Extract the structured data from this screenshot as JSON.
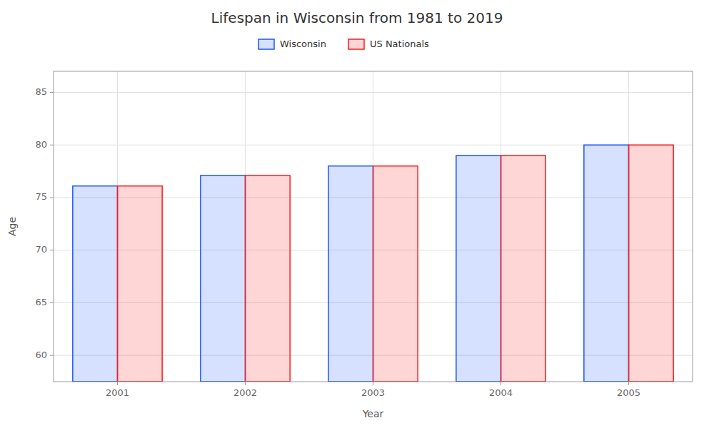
{
  "chart_data": {
    "type": "bar",
    "title": "Lifespan in Wisconsin from 1981 to 2019",
    "xlabel": "Year",
    "ylabel": "Age",
    "categories": [
      "2001",
      "2002",
      "2003",
      "2004",
      "2005"
    ],
    "series": [
      {
        "name": "Wisconsin",
        "color": "#1a56ff",
        "values": [
          76.1,
          77.1,
          78.0,
          79.0,
          80.0
        ]
      },
      {
        "name": "US Nationals",
        "color": "#ff1a1a",
        "values": [
          76.1,
          77.1,
          78.0,
          79.0,
          80.0
        ]
      }
    ],
    "ylim": [
      57.5,
      87
    ],
    "yticks": [
      60,
      65,
      70,
      75,
      80,
      85
    ],
    "grid": true,
    "legend": "top"
  }
}
